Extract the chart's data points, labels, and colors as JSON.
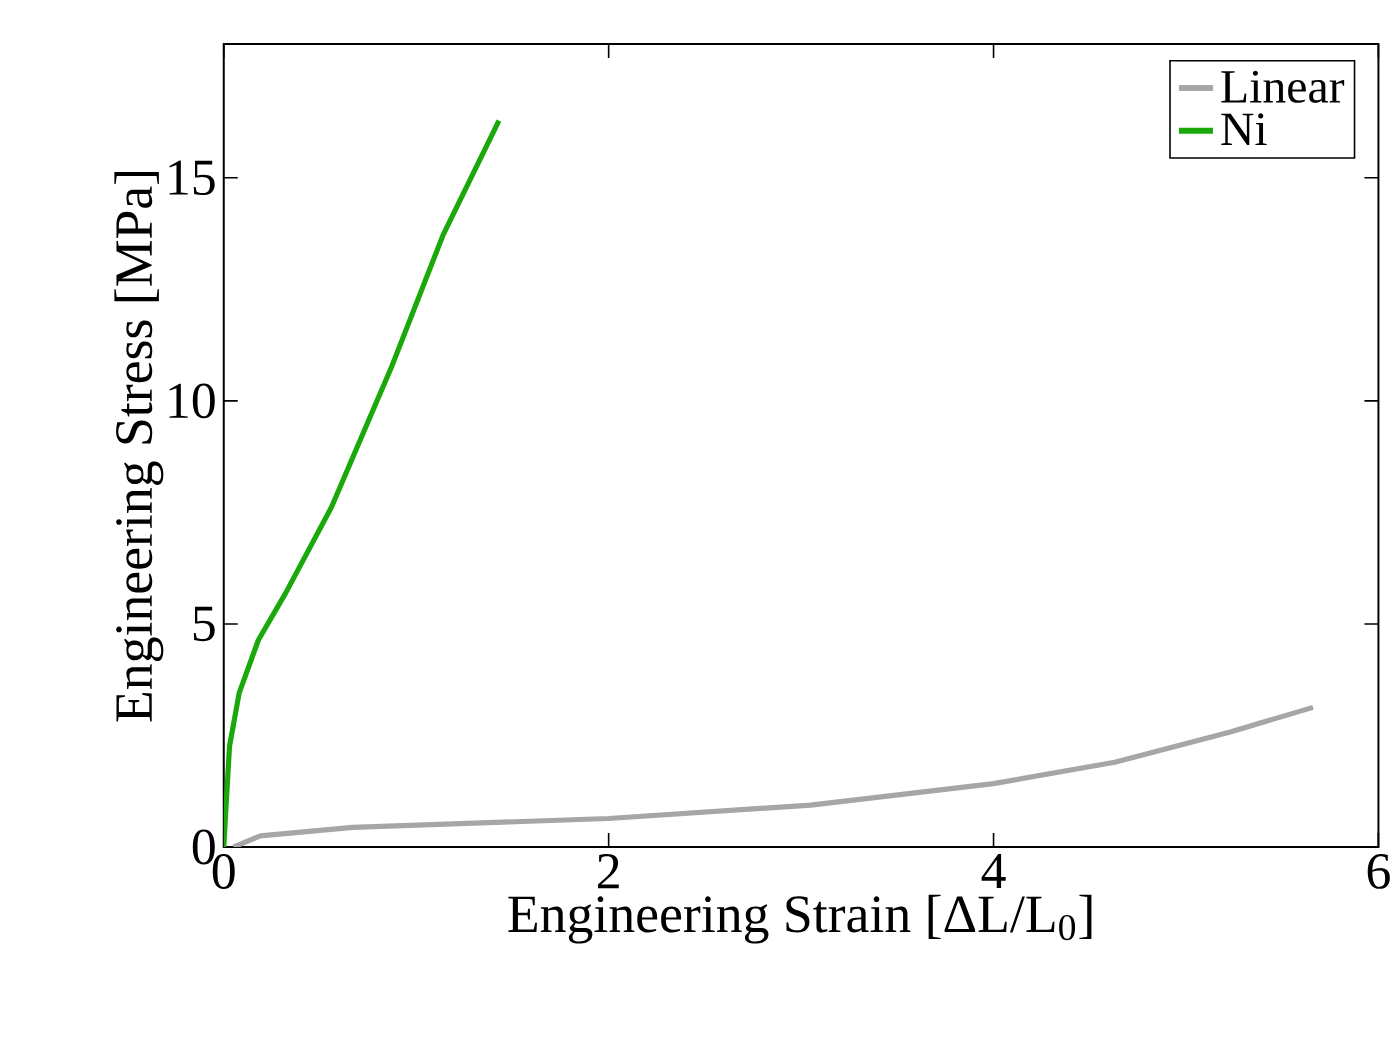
{
  "chart_data": {
    "type": "line",
    "xlabel": "Engineering Strain [ΔL/L$_{0}$]",
    "ylabel": "Engineering Stress [MPa]",
    "xlim": [
      0,
      6
    ],
    "ylim": [
      0,
      18
    ],
    "xticks": [
      0,
      2,
      4,
      6
    ],
    "yticks": [
      0,
      5,
      10,
      15
    ],
    "grid": false,
    "legend": "top right",
    "marker": "none",
    "line_style": "solid",
    "series": [
      {
        "name": "Linear",
        "color": "#a6a6a6",
        "x": [
          0.05,
          0.19,
          0.67,
          2.0,
          3.05,
          4.0,
          4.63,
          5.23,
          5.66
        ],
        "values": [
          0,
          0.25,
          0.44,
          0.64,
          0.94,
          1.42,
          1.9,
          2.58,
          3.13
        ]
      },
      {
        "name": "Ni",
        "color": "#1aa80a",
        "x": [
          0,
          0.01,
          0.03,
          0.08,
          0.18,
          0.32,
          0.56,
          0.87,
          1.14,
          1.43
        ],
        "values": [
          0,
          0.77,
          2.26,
          3.45,
          4.64,
          5.68,
          7.62,
          10.74,
          13.72,
          16.28
        ]
      }
    ]
  }
}
